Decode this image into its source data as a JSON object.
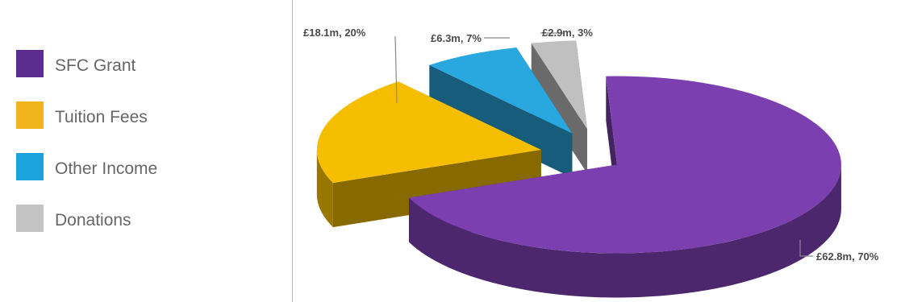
{
  "chart_data": {
    "type": "pie",
    "style": "3d-exploded",
    "categories": [
      "SFC Grant",
      "Tuition Fees",
      "Other Income",
      "Donations"
    ],
    "values": [
      62.8,
      18.1,
      6.3,
      2.9
    ],
    "percentages": [
      70,
      20,
      7,
      3
    ],
    "colors": [
      "#7b3fb0",
      "#f5be00",
      "#29a8e0",
      "#c0c0c0"
    ],
    "data_labels": [
      "£62.8m, 70%",
      "£18.1m, 20%",
      "£6.3m, 7%",
      "£2.9m, 3%"
    ],
    "legend_position": "left",
    "title": ""
  },
  "legend": {
    "items": [
      {
        "label": "SFC Grant",
        "color": "#5b2d8e"
      },
      {
        "label": "Tuition Fees",
        "color": "#f0b51c"
      },
      {
        "label": "Other Income",
        "color": "#1aa3dd"
      },
      {
        "label": "Donations",
        "color": "#c4c4c4"
      }
    ]
  }
}
